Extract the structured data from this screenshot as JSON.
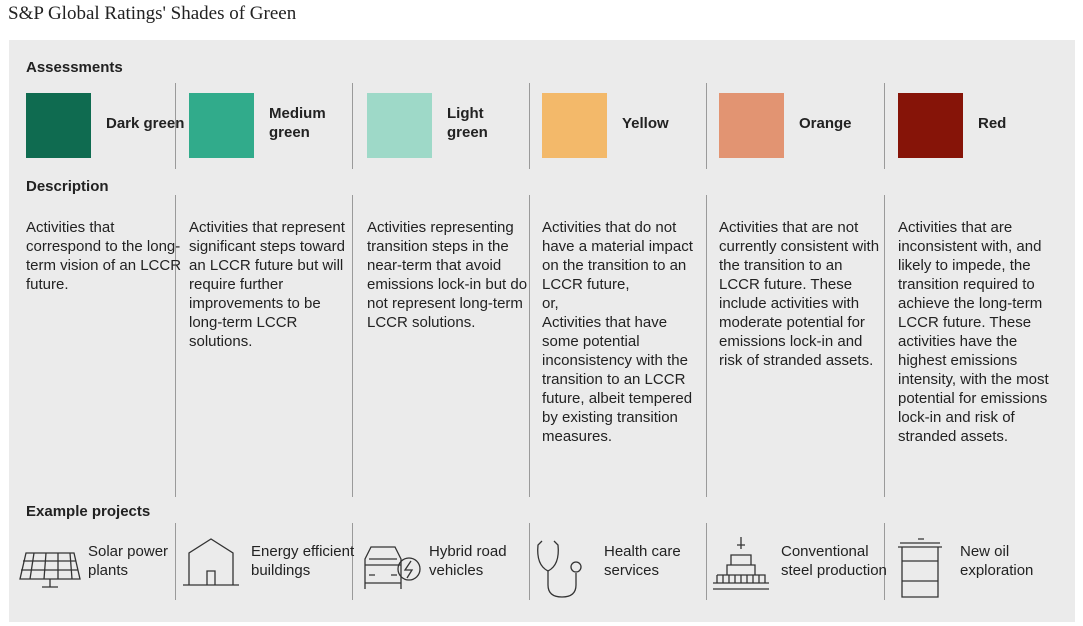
{
  "header": {
    "title": "S&P Global Ratings' Shades of Green"
  },
  "sections": {
    "assessments": "Assessments",
    "description": "Description",
    "examples": "Example projects"
  },
  "columns": [
    {
      "name": "Dark green",
      "color": "#0f6b50",
      "description": [
        "Activities that correspond to the long-term vision of an LCCR future."
      ],
      "example": "Solar power plants"
    },
    {
      "name": "Medium green",
      "color": "#31ab8b",
      "description": [
        "Activities that represent significant steps toward an LCCR future but will require further improvements to be long-term LCCR solutions."
      ],
      "example": "Energy efficient buildings"
    },
    {
      "name": "Light green",
      "color": "#9ed9c8",
      "description": [
        "Activities representing transition steps in the near-term that avoid emissions lock-in but do not represent long-term LCCR solutions."
      ],
      "example": "Hybrid road vehicles"
    },
    {
      "name": "Yellow",
      "color": "#f3b96a",
      "description": [
        "Activities that do not have a material impact on the transition to an LCCR future,",
        "or,",
        "Activities that have some potential inconsistency with the transition to an LCCR future, albeit tempered by existing transition measures."
      ],
      "example": "Health care services"
    },
    {
      "name": "Orange",
      "color": "#e29472",
      "description": [
        "Activities that are not currently consistent with the transition to an LCCR future. These include activities with moderate potential for emissions lock-in and risk of stranded assets."
      ],
      "example": "Conventional steel production"
    },
    {
      "name": "Red",
      "color": "#861408",
      "description": [
        "Activities that are inconsistent with, and likely to impede, the transition required to achieve the long-term LCCR future. These activities have the highest emissions intensity, with the most potential for emissions lock-in and risk of stranded assets."
      ],
      "example": "New oil exploration"
    }
  ]
}
